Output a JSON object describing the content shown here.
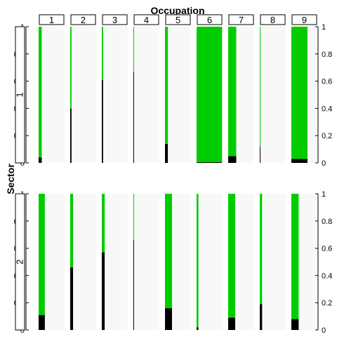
{
  "chart_data": {
    "type": "bar",
    "title": "Occupation",
    "ylabel": "Sector",
    "ylim": [
      0,
      1
    ],
    "yticks": [
      0,
      0.2,
      0.4,
      0.6,
      0.8,
      1
    ],
    "ytick_labels": [
      "0",
      "0.2",
      "0.4",
      "0.6",
      "0.8",
      "1"
    ],
    "grid": false,
    "colors": {
      "black": "#000000",
      "green": "#00cc00",
      "background": "#f8f8f8"
    },
    "columns": [
      "1",
      "2",
      "3",
      "4",
      "5",
      "6",
      "7",
      "8",
      "9"
    ],
    "rows": [
      {
        "label": "1",
        "width_fraction": [
          0.12,
          0.05,
          0.05,
          0.01,
          0.11,
          0.98,
          0.31,
          0.02,
          0.62
        ],
        "black": [
          0.04,
          0.4,
          0.61,
          0.67,
          0.14,
          0.005,
          0.05,
          0.12,
          0.03
        ],
        "green": [
          0.96,
          0.6,
          0.39,
          0.33,
          0.86,
          0.995,
          0.95,
          0.88,
          0.97
        ]
      },
      {
        "label": "2",
        "width_fraction": [
          0.24,
          0.11,
          0.11,
          0.01,
          0.27,
          0.07,
          0.27,
          0.09,
          0.28
        ],
        "black": [
          0.11,
          0.46,
          0.57,
          0.66,
          0.16,
          0.02,
          0.09,
          0.19,
          0.08
        ],
        "green": [
          0.89,
          0.54,
          0.43,
          0.34,
          0.84,
          0.98,
          0.91,
          0.81,
          0.92
        ]
      }
    ]
  }
}
